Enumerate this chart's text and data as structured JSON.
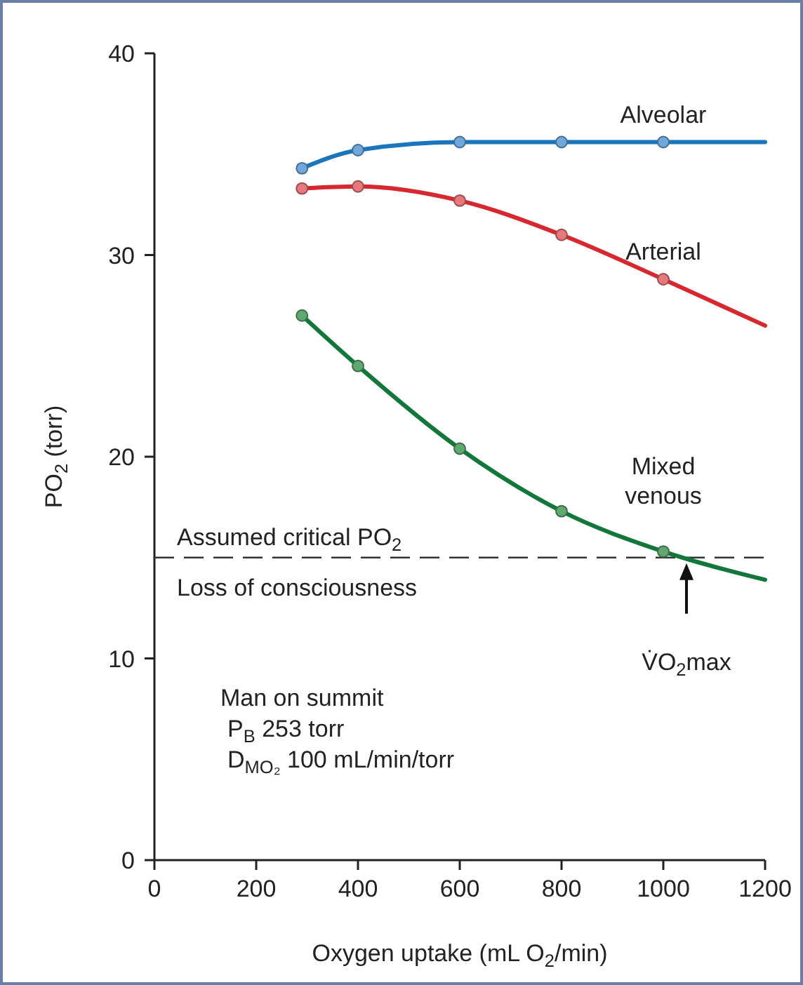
{
  "chart_data": {
    "type": "line",
    "xlabel": "Oxygen uptake (mL O$_{2}$/min)",
    "ylabel": "PO$_{2}$ (torr)",
    "xlim": [
      0,
      1200
    ],
    "xticks": [
      0,
      200,
      400,
      600,
      800,
      1000,
      1200
    ],
    "ylim": [
      0,
      40
    ],
    "yticks": [
      0,
      10,
      20,
      30,
      40
    ],
    "grid": false,
    "series": [
      {
        "name": "Alveolar",
        "marker": "none",
        "color": "#1b75bc",
        "x": [
          290,
          400,
          600,
          800,
          1000,
          1200
        ],
        "values": [
          34.3,
          35.2,
          35.6,
          35.6,
          35.6,
          35.6
        ]
      },
      {
        "name": "Arterial",
        "marker": "none",
        "color": "#d7282f",
        "x": [
          290,
          400,
          600,
          800,
          1000,
          1200
        ],
        "values": [
          33.3,
          33.4,
          32.7,
          31.0,
          28.8,
          26.5
        ]
      },
      {
        "name": "Mixed venous",
        "marker": "none",
        "color": "#11773a",
        "x": [
          290,
          400,
          600,
          800,
          1000,
          1200
        ],
        "values": [
          27.0,
          24.5,
          20.4,
          17.3,
          15.3,
          13.9
        ]
      },
      {
        "type": "scatter",
        "marker": "circle",
        "color": "#6fa8dc",
        "x": [
          290,
          400,
          600,
          800,
          1000
        ],
        "values": [
          34.3,
          35.2,
          35.6,
          35.6,
          35.6
        ]
      },
      {
        "type": "scatter",
        "marker": "circle",
        "color": "#e8787c",
        "x": [
          290,
          400,
          600,
          800,
          1000
        ],
        "values": [
          33.3,
          33.4,
          32.7,
          31.0,
          28.8
        ]
      },
      {
        "type": "scatter",
        "marker": "circle",
        "color": "#5fa870",
        "x": [
          290,
          400,
          600,
          800,
          1000
        ],
        "values": [
          27.0,
          24.5,
          20.4,
          17.3,
          15.3
        ]
      }
    ],
    "ref_lines": [
      {
        "axis": "y",
        "value": 15,
        "label": "Assumed critical PO$_{2}$",
        "color": "#333333",
        "line_style": "dashed"
      }
    ],
    "annotations": [
      "Loss of consciousness",
      "V̇O$_{2}$max",
      "Man on summit",
      "P$_{B}$ 253 torr",
      "D$_{MO₂}$ 100 mL/min/torr"
    ]
  }
}
